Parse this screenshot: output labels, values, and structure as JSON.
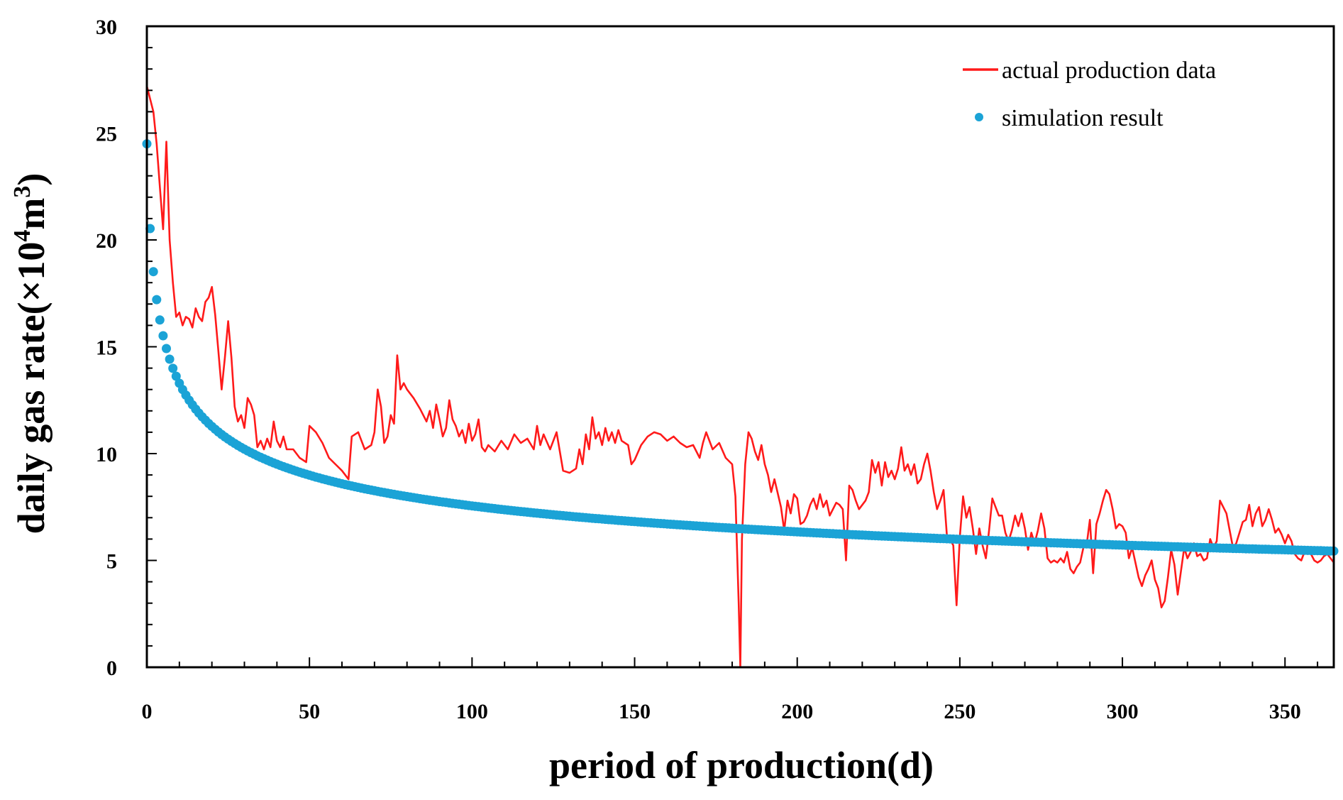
{
  "chart_data": {
    "type": "line",
    "title": "",
    "xlabel": "period of production(d)",
    "ylabel": {
      "main": "daily gas rate(×10",
      "sup1": "4",
      "mid": "m",
      "sup2": "3",
      "end": ")"
    },
    "xlim": [
      0,
      365
    ],
    "ylim": [
      0,
      30
    ],
    "x_ticks": [
      "0",
      "50",
      "100",
      "150",
      "200",
      "250",
      "300",
      "350"
    ],
    "y_ticks": [
      "0",
      "5",
      "10",
      "15",
      "20",
      "25",
      "30"
    ],
    "grid": false,
    "legend_position": "top-right",
    "colors": {
      "actual": "#ff1a1a",
      "simulation": "#1ba3d6"
    },
    "series": [
      {
        "name": "actual production data",
        "style": "line",
        "points": [
          [
            0,
            27.2
          ],
          [
            2,
            26
          ],
          [
            3,
            24.5
          ],
          [
            4,
            22.5
          ],
          [
            5,
            20.5
          ],
          [
            6,
            24.6
          ],
          [
            7,
            20
          ],
          [
            8,
            18
          ],
          [
            9,
            16.4
          ],
          [
            10,
            16.6
          ],
          [
            11,
            16
          ],
          [
            12,
            16.4
          ],
          [
            13,
            16.3
          ],
          [
            14,
            15.9
          ],
          [
            15,
            16.8
          ],
          [
            16,
            16.4
          ],
          [
            17,
            16.2
          ],
          [
            18,
            17.1
          ],
          [
            19,
            17.3
          ],
          [
            20,
            17.8
          ],
          [
            21,
            16.5
          ],
          [
            22,
            14.8
          ],
          [
            23,
            13
          ],
          [
            24,
            14.5
          ],
          [
            25,
            16.2
          ],
          [
            26,
            14.5
          ],
          [
            27,
            12.2
          ],
          [
            28,
            11.5
          ],
          [
            29,
            11.8
          ],
          [
            30,
            11.2
          ],
          [
            31,
            12.6
          ],
          [
            32,
            12.3
          ],
          [
            33,
            11.8
          ],
          [
            34,
            10.3
          ],
          [
            35,
            10.6
          ],
          [
            36,
            10.2
          ],
          [
            37,
            10.7
          ],
          [
            38,
            10.3
          ],
          [
            39,
            11.5
          ],
          [
            40,
            10.6
          ],
          [
            41,
            10.3
          ],
          [
            42,
            10.8
          ],
          [
            43,
            10.2
          ],
          [
            45,
            10.2
          ],
          [
            47,
            9.8
          ],
          [
            49,
            9.6
          ],
          [
            50,
            11.3
          ],
          [
            52,
            11
          ],
          [
            54,
            10.5
          ],
          [
            56,
            9.8
          ],
          [
            58,
            9.5
          ],
          [
            60,
            9.2
          ],
          [
            62,
            8.8
          ],
          [
            63,
            10.8
          ],
          [
            65,
            11
          ],
          [
            67,
            10.2
          ],
          [
            69,
            10.4
          ],
          [
            70,
            11
          ],
          [
            71,
            13
          ],
          [
            72,
            12.2
          ],
          [
            73,
            10.5
          ],
          [
            74,
            10.8
          ],
          [
            75,
            11.8
          ],
          [
            76,
            11.4
          ],
          [
            77,
            14.6
          ],
          [
            78,
            13
          ],
          [
            79,
            13.3
          ],
          [
            80,
            13
          ],
          [
            82,
            12.6
          ],
          [
            84,
            12.1
          ],
          [
            86,
            11.5
          ],
          [
            87,
            12
          ],
          [
            88,
            11.2
          ],
          [
            89,
            12.3
          ],
          [
            90,
            11.6
          ],
          [
            91,
            10.8
          ],
          [
            92,
            11.2
          ],
          [
            93,
            12.5
          ],
          [
            94,
            11.6
          ],
          [
            95,
            11.3
          ],
          [
            96,
            10.8
          ],
          [
            97,
            11.1
          ],
          [
            98,
            10.5
          ],
          [
            99,
            11.4
          ],
          [
            100,
            10.6
          ],
          [
            101,
            10.9
          ],
          [
            102,
            11.6
          ],
          [
            103,
            10.3
          ],
          [
            104,
            10.1
          ],
          [
            105,
            10.4
          ],
          [
            107,
            10.1
          ],
          [
            109,
            10.6
          ],
          [
            111,
            10.2
          ],
          [
            113,
            10.9
          ],
          [
            115,
            10.5
          ],
          [
            117,
            10.7
          ],
          [
            119,
            10.2
          ],
          [
            120,
            11.3
          ],
          [
            121,
            10.4
          ],
          [
            122,
            10.9
          ],
          [
            124,
            10.2
          ],
          [
            126,
            11
          ],
          [
            127,
            10.1
          ],
          [
            128,
            9.2
          ],
          [
            130,
            9.1
          ],
          [
            132,
            9.3
          ],
          [
            133,
            10.2
          ],
          [
            134,
            9.5
          ],
          [
            135,
            10.9
          ],
          [
            136,
            10.2
          ],
          [
            137,
            11.7
          ],
          [
            138,
            10.7
          ],
          [
            139,
            11
          ],
          [
            140,
            10.4
          ],
          [
            141,
            11.2
          ],
          [
            142,
            10.6
          ],
          [
            143,
            11
          ],
          [
            144,
            10.5
          ],
          [
            145,
            11.1
          ],
          [
            146,
            10.6
          ],
          [
            148,
            10.4
          ],
          [
            149,
            9.5
          ],
          [
            150,
            9.7
          ],
          [
            152,
            10.4
          ],
          [
            154,
            10.8
          ],
          [
            156,
            11
          ],
          [
            158,
            10.9
          ],
          [
            160,
            10.6
          ],
          [
            162,
            10.8
          ],
          [
            164,
            10.5
          ],
          [
            166,
            10.3
          ],
          [
            168,
            10.4
          ],
          [
            170,
            9.8
          ],
          [
            171,
            10.5
          ],
          [
            172,
            11
          ],
          [
            174,
            10.2
          ],
          [
            176,
            10.5
          ],
          [
            178,
            9.8
          ],
          [
            180,
            9.5
          ],
          [
            181,
            8
          ],
          [
            182,
            3
          ],
          [
            182.5,
            0
          ],
          [
            183,
            6
          ],
          [
            184,
            9.5
          ],
          [
            185,
            11
          ],
          [
            186,
            10.7
          ],
          [
            187,
            10.1
          ],
          [
            188,
            9.7
          ],
          [
            189,
            10.4
          ],
          [
            190,
            9.5
          ],
          [
            191,
            9
          ],
          [
            192,
            8.2
          ],
          [
            193,
            8.8
          ],
          [
            195,
            7.5
          ],
          [
            196,
            6.4
          ],
          [
            197,
            7.8
          ],
          [
            198,
            7.2
          ],
          [
            199,
            8.1
          ],
          [
            200,
            7.9
          ],
          [
            201,
            6.7
          ],
          [
            202,
            6.8
          ],
          [
            203,
            7.1
          ],
          [
            204,
            7.6
          ],
          [
            205,
            7.9
          ],
          [
            206,
            7.4
          ],
          [
            207,
            8.1
          ],
          [
            208,
            7.5
          ],
          [
            209,
            7.8
          ],
          [
            210,
            7.1
          ],
          [
            212,
            7.7
          ],
          [
            213,
            7.6
          ],
          [
            214,
            7.4
          ],
          [
            215,
            5
          ],
          [
            216,
            8.5
          ],
          [
            217,
            8.3
          ],
          [
            218,
            7.8
          ],
          [
            219,
            7.4
          ],
          [
            221,
            7.8
          ],
          [
            222,
            8.2
          ],
          [
            223,
            9.7
          ],
          [
            224,
            9.1
          ],
          [
            225,
            9.6
          ],
          [
            226,
            8.5
          ],
          [
            227,
            9.6
          ],
          [
            228,
            8.9
          ],
          [
            229,
            9.2
          ],
          [
            230,
            8.8
          ],
          [
            231,
            9.3
          ],
          [
            232,
            10.3
          ],
          [
            233,
            9.2
          ],
          [
            234,
            9.5
          ],
          [
            235,
            9
          ],
          [
            236,
            9.5
          ],
          [
            237,
            8.6
          ],
          [
            238,
            8.8
          ],
          [
            239,
            9.5
          ],
          [
            240,
            10
          ],
          [
            241,
            9.2
          ],
          [
            242,
            8.2
          ],
          [
            243,
            7.4
          ],
          [
            244,
            7.8
          ],
          [
            245,
            8.3
          ],
          [
            246,
            6.2
          ],
          [
            247,
            6
          ],
          [
            248,
            5.7
          ],
          [
            249,
            2.9
          ],
          [
            250,
            6.1
          ],
          [
            251,
            8
          ],
          [
            252,
            7
          ],
          [
            253,
            7.5
          ],
          [
            254,
            6.5
          ],
          [
            255,
            5.3
          ],
          [
            256,
            6.5
          ],
          [
            257,
            5.7
          ],
          [
            258,
            5.1
          ],
          [
            259,
            6.4
          ],
          [
            260,
            7.9
          ],
          [
            261,
            7.5
          ],
          [
            262,
            7.1
          ],
          [
            263,
            7.1
          ],
          [
            264,
            6.3
          ],
          [
            265,
            5.9
          ],
          [
            266,
            6.4
          ],
          [
            267,
            7.1
          ],
          [
            268,
            6.6
          ],
          [
            269,
            7.2
          ],
          [
            270,
            6.5
          ],
          [
            271,
            5.5
          ],
          [
            272,
            6.3
          ],
          [
            273,
            5.8
          ],
          [
            274,
            6.4
          ],
          [
            275,
            7.2
          ],
          [
            276,
            6.5
          ],
          [
            277,
            5.1
          ],
          [
            278,
            4.9
          ],
          [
            279,
            5
          ],
          [
            280,
            4.9
          ],
          [
            281,
            5.1
          ],
          [
            282,
            4.9
          ],
          [
            283,
            5.4
          ],
          [
            284,
            4.6
          ],
          [
            285,
            4.4
          ],
          [
            286,
            4.7
          ],
          [
            287,
            4.9
          ],
          [
            288,
            5.6
          ],
          [
            289,
            5.7
          ],
          [
            290,
            6.9
          ],
          [
            291,
            4.4
          ],
          [
            292,
            6.7
          ],
          [
            293,
            7.2
          ],
          [
            294,
            7.8
          ],
          [
            295,
            8.3
          ],
          [
            296,
            8.1
          ],
          [
            297,
            7.4
          ],
          [
            298,
            6.5
          ],
          [
            299,
            6.7
          ],
          [
            300,
            6.6
          ],
          [
            301,
            6.3
          ],
          [
            302,
            5.1
          ],
          [
            303,
            5.6
          ],
          [
            304,
            4.9
          ],
          [
            305,
            4.2
          ],
          [
            306,
            3.8
          ],
          [
            307,
            4.3
          ],
          [
            308,
            4.6
          ],
          [
            309,
            5
          ],
          [
            310,
            4.1
          ],
          [
            311,
            3.7
          ],
          [
            312,
            2.8
          ],
          [
            313,
            3.1
          ],
          [
            314,
            4.2
          ],
          [
            315,
            5.5
          ],
          [
            316,
            4.8
          ],
          [
            317,
            3.4
          ],
          [
            318,
            4.5
          ],
          [
            319,
            5.6
          ],
          [
            320,
            5.1
          ],
          [
            321,
            5.4
          ],
          [
            322,
            5.8
          ],
          [
            323,
            5.2
          ],
          [
            324,
            5.3
          ],
          [
            325,
            5
          ],
          [
            326,
            5.1
          ],
          [
            327,
            6
          ],
          [
            328,
            5.6
          ],
          [
            329,
            5.9
          ],
          [
            330,
            7.8
          ],
          [
            331,
            7.5
          ],
          [
            332,
            7.2
          ],
          [
            333,
            6.4
          ],
          [
            334,
            5.6
          ],
          [
            335,
            5.8
          ],
          [
            336,
            6.3
          ],
          [
            337,
            6.8
          ],
          [
            338,
            6.9
          ],
          [
            339,
            7.6
          ],
          [
            340,
            6.6
          ],
          [
            341,
            7.2
          ],
          [
            342,
            7.5
          ],
          [
            343,
            6.6
          ],
          [
            344,
            6.9
          ],
          [
            345,
            7.4
          ],
          [
            346,
            6.9
          ],
          [
            347,
            6.3
          ],
          [
            348,
            6.5
          ],
          [
            349,
            6.2
          ],
          [
            350,
            5.8
          ],
          [
            351,
            6.2
          ],
          [
            352,
            5.9
          ],
          [
            353,
            5.3
          ],
          [
            354,
            5.1
          ],
          [
            355,
            5
          ],
          [
            356,
            5.4
          ],
          [
            357,
            5.6
          ],
          [
            358,
            5.3
          ],
          [
            359,
            5
          ],
          [
            360,
            4.9
          ],
          [
            361,
            5
          ],
          [
            362,
            5.2
          ],
          [
            363,
            5.3
          ],
          [
            364,
            5.1
          ],
          [
            365,
            4.9
          ]
        ]
      },
      {
        "name": "simulation result",
        "style": "scatter",
        "model": {
          "form": "a*(x+1)^(-b)",
          "a": 24.5,
          "b": 0.255,
          "x_from": 0,
          "x_to": 365,
          "x_step": 1
        }
      }
    ]
  }
}
